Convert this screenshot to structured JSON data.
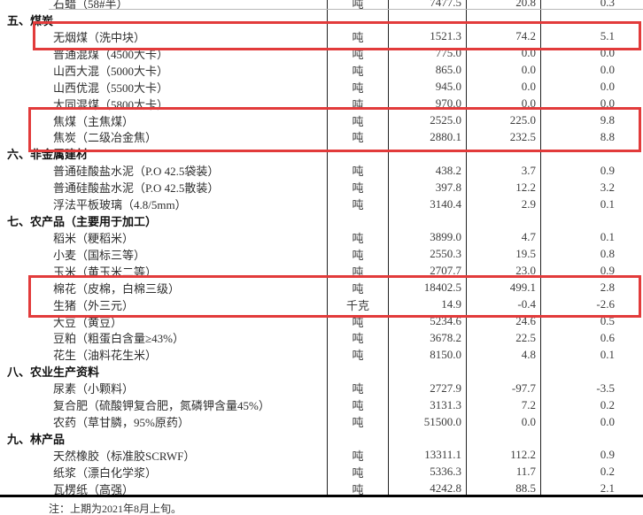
{
  "meta": {
    "highlight_color": "#e23b3b",
    "grid_line_color": "#222222"
  },
  "table": {
    "partial_row": {
      "name": "石蜡（58#半）",
      "unit": "吨",
      "price": "7477.5",
      "change": "20.8",
      "pct": "0.3"
    },
    "rows": [
      {
        "type": "section",
        "name": "五、煤炭"
      },
      {
        "type": "item",
        "name": "无烟煤（洗中块）",
        "unit": "吨",
        "price": "1521.3",
        "change": "74.2",
        "pct": "5.1",
        "highlighted": true
      },
      {
        "type": "item",
        "name": "普通混煤（4500大卡）",
        "unit": "吨",
        "price": "775.0",
        "change": "0.0",
        "pct": "0.0",
        "highlighted": false
      },
      {
        "type": "item",
        "name": "山西大混（5000大卡）",
        "unit": "吨",
        "price": "865.0",
        "change": "0.0",
        "pct": "0.0",
        "highlighted": false
      },
      {
        "type": "item",
        "name": "山西优混（5500大卡）",
        "unit": "吨",
        "price": "945.0",
        "change": "0.0",
        "pct": "0.0",
        "highlighted": false
      },
      {
        "type": "item",
        "name": "大同混煤（5800大卡）",
        "unit": "吨",
        "price": "970.0",
        "change": "0.0",
        "pct": "0.0",
        "highlighted": false
      },
      {
        "type": "item",
        "name": "焦煤（主焦煤）",
        "unit": "吨",
        "price": "2525.0",
        "change": "225.0",
        "pct": "9.8",
        "highlighted": true
      },
      {
        "type": "item",
        "name": "焦炭（二级冶金焦）",
        "unit": "吨",
        "price": "2880.1",
        "change": "232.5",
        "pct": "8.8",
        "highlighted": true
      },
      {
        "type": "section",
        "name": "六、非金属建材"
      },
      {
        "type": "item",
        "name": "普通硅酸盐水泥（P.O 42.5袋装）",
        "unit": "吨",
        "price": "438.2",
        "change": "3.7",
        "pct": "0.9",
        "highlighted": false
      },
      {
        "type": "item",
        "name": "普通硅酸盐水泥（P.O 42.5散装）",
        "unit": "吨",
        "price": "397.8",
        "change": "12.2",
        "pct": "3.2",
        "highlighted": false
      },
      {
        "type": "item",
        "name": "浮法平板玻璃（4.8/5mm）",
        "unit": "吨",
        "price": "3140.4",
        "change": "2.9",
        "pct": "0.1",
        "highlighted": false
      },
      {
        "type": "section",
        "name": "七、农产品（主要用于加工）"
      },
      {
        "type": "item",
        "name": "稻米（粳稻米）",
        "unit": "吨",
        "price": "3899.0",
        "change": "4.7",
        "pct": "0.1",
        "highlighted": false
      },
      {
        "type": "item",
        "name": "小麦（国标三等）",
        "unit": "吨",
        "price": "2550.3",
        "change": "19.5",
        "pct": "0.8",
        "highlighted": false
      },
      {
        "type": "item",
        "name": "玉米（黄玉米二等）",
        "unit": "吨",
        "price": "2707.7",
        "change": "23.0",
        "pct": "0.9",
        "highlighted": false
      },
      {
        "type": "item",
        "name": "棉花（皮棉，白棉三级）",
        "unit": "吨",
        "price": "18402.5",
        "change": "499.1",
        "pct": "2.8",
        "highlighted": true
      },
      {
        "type": "item",
        "name": "生猪（外三元）",
        "unit": "千克",
        "price": "14.9",
        "change": "-0.4",
        "pct": "-2.6",
        "highlighted": true
      },
      {
        "type": "item",
        "name": "大豆（黄豆）",
        "unit": "吨",
        "price": "5234.6",
        "change": "24.6",
        "pct": "0.5",
        "highlighted": false
      },
      {
        "type": "item",
        "name": "豆粕（粗蛋白含量≥43%）",
        "unit": "吨",
        "price": "3678.2",
        "change": "22.5",
        "pct": "0.6",
        "highlighted": false
      },
      {
        "type": "item",
        "name": "花生（油料花生米）",
        "unit": "吨",
        "price": "8150.0",
        "change": "4.8",
        "pct": "0.1",
        "highlighted": false
      },
      {
        "type": "section",
        "name": "八、农业生产资料"
      },
      {
        "type": "item",
        "name": "尿素（小颗料）",
        "unit": "吨",
        "price": "2727.9",
        "change": "-97.7",
        "pct": "-3.5",
        "highlighted": false
      },
      {
        "type": "item",
        "name": "复合肥（硫酸钾复合肥，氮磷钾含量45%）",
        "unit": "吨",
        "price": "3131.3",
        "change": "7.2",
        "pct": "0.2",
        "highlighted": false
      },
      {
        "type": "item",
        "name": "农药（草甘膦，95%原药）",
        "unit": "吨",
        "price": "51500.0",
        "change": "0.0",
        "pct": "0.0",
        "highlighted": false
      },
      {
        "type": "section",
        "name": "九、林产品"
      },
      {
        "type": "item",
        "name": "天然橡胶（标准胶SCRWF）",
        "unit": "吨",
        "price": "13311.1",
        "change": "112.2",
        "pct": "0.9",
        "highlighted": false
      },
      {
        "type": "item",
        "name": "纸浆（漂白化学浆）",
        "unit": "吨",
        "price": "5336.3",
        "change": "11.7",
        "pct": "0.2",
        "highlighted": false
      },
      {
        "type": "item",
        "name": "瓦楞纸（高强）",
        "unit": "吨",
        "price": "4242.8",
        "change": "88.5",
        "pct": "2.1",
        "highlighted": false
      }
    ],
    "footnote": "注：上期为2021年8月上旬。"
  }
}
